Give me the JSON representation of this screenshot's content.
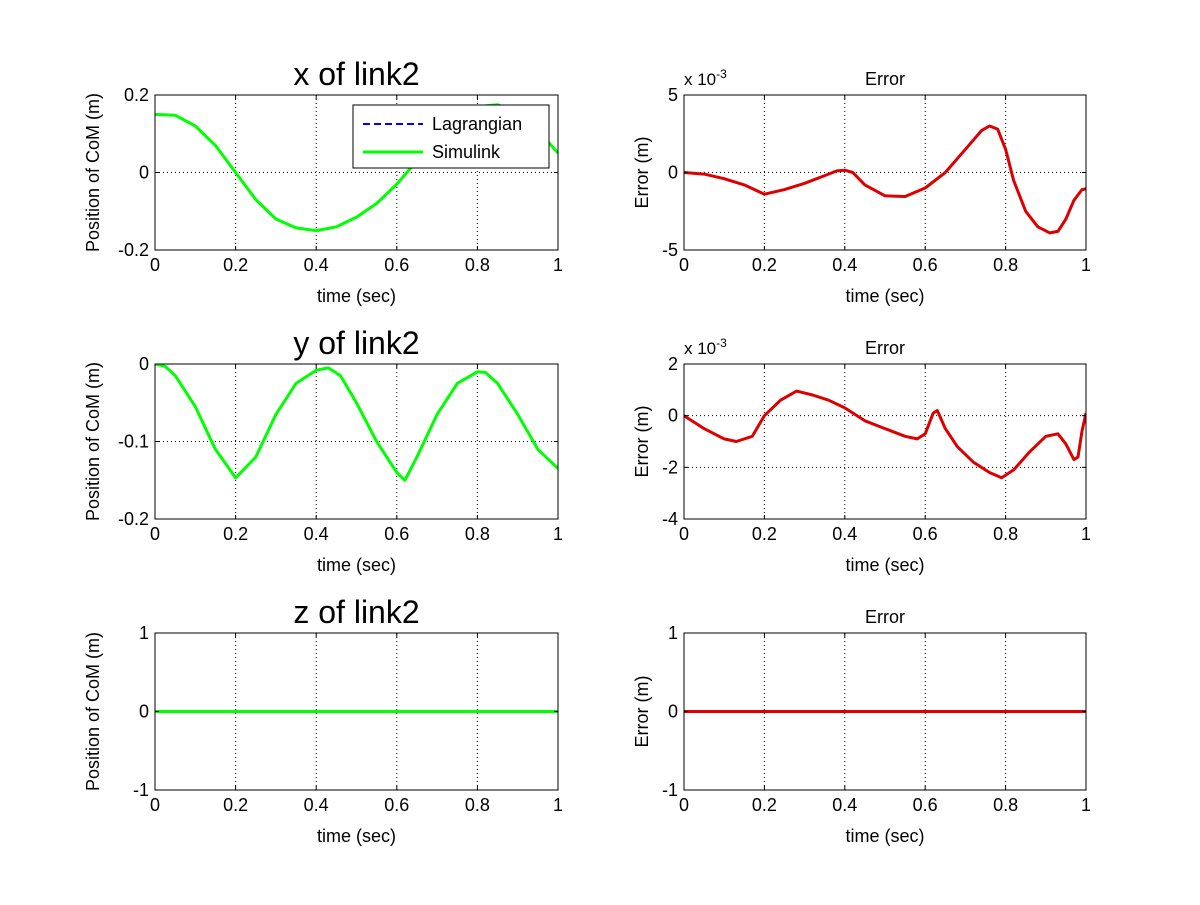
{
  "figure": {
    "background": "#ffffff",
    "line_colors": {
      "lagrangian": "#0000ff",
      "simulink": "#00ff00",
      "error": "#dd0000"
    }
  },
  "chart_data": [
    {
      "type": "line",
      "title": "x of link2",
      "xlabel": "time (sec)",
      "ylabel": "Position of CoM (m)",
      "xlim": [
        0,
        1
      ],
      "ylim": [
        -0.2,
        0.2
      ],
      "xticks": [
        0,
        0.2,
        0.4,
        0.6,
        0.8,
        1
      ],
      "yticks": [
        -0.2,
        0,
        0.2
      ],
      "xtick_labels": [
        "0",
        "0.2",
        "0.4",
        "0.6",
        "0.8",
        "1"
      ],
      "ytick_labels": [
        "-0.2",
        "0",
        "0.2"
      ],
      "grid": true,
      "legend_position": "top-right",
      "series": [
        {
          "name": "Lagrangian",
          "color": "#0000ff",
          "dash": "dashed",
          "x": [
            0,
            0.05,
            0.1,
            0.15,
            0.2,
            0.25,
            0.3,
            0.35,
            0.4,
            0.45,
            0.5,
            0.55,
            0.6,
            0.65,
            0.7,
            0.75,
            0.8,
            0.85,
            0.9,
            0.95,
            1.0
          ],
          "y": [
            0.15,
            0.148,
            0.12,
            0.07,
            0.0,
            -0.07,
            -0.12,
            -0.143,
            -0.15,
            -0.14,
            -0.115,
            -0.08,
            -0.03,
            0.03,
            0.09,
            0.14,
            0.17,
            0.175,
            0.155,
            0.11,
            0.05
          ]
        },
        {
          "name": "Simulink",
          "color": "#00ff00",
          "dash": "solid",
          "x": [
            0,
            0.05,
            0.1,
            0.15,
            0.2,
            0.25,
            0.3,
            0.35,
            0.4,
            0.45,
            0.5,
            0.55,
            0.6,
            0.65,
            0.7,
            0.75,
            0.8,
            0.85,
            0.9,
            0.95,
            1.0
          ],
          "y": [
            0.15,
            0.148,
            0.12,
            0.07,
            0.0,
            -0.07,
            -0.12,
            -0.143,
            -0.15,
            -0.14,
            -0.115,
            -0.08,
            -0.03,
            0.03,
            0.09,
            0.14,
            0.17,
            0.175,
            0.155,
            0.11,
            0.05
          ]
        }
      ]
    },
    {
      "type": "line",
      "title": "Error",
      "xlabel": "time (sec)",
      "ylabel": "Error (m)",
      "scale_label": "x 10",
      "scale_exponent": "-3",
      "xlim": [
        0,
        1
      ],
      "ylim": [
        -5,
        5
      ],
      "xticks": [
        0,
        0.2,
        0.4,
        0.6,
        0.8,
        1
      ],
      "yticks": [
        -5,
        0,
        5
      ],
      "xtick_labels": [
        "0",
        "0.2",
        "0.4",
        "0.6",
        "0.8",
        "1"
      ],
      "ytick_labels": [
        "-5",
        "0",
        "5"
      ],
      "grid": true,
      "series": [
        {
          "color": "#dd0000",
          "dash": "solid",
          "x": [
            0,
            0.05,
            0.1,
            0.15,
            0.2,
            0.25,
            0.3,
            0.35,
            0.38,
            0.4,
            0.42,
            0.45,
            0.5,
            0.55,
            0.6,
            0.65,
            0.7,
            0.74,
            0.76,
            0.78,
            0.8,
            0.82,
            0.85,
            0.88,
            0.91,
            0.93,
            0.95,
            0.97,
            0.99,
            1.0
          ],
          "y": [
            0.0,
            -0.1,
            -0.4,
            -0.8,
            -1.4,
            -1.1,
            -0.7,
            -0.2,
            0.1,
            0.15,
            0.0,
            -0.8,
            -1.5,
            -1.55,
            -1.0,
            0.0,
            1.5,
            2.7,
            3.0,
            2.8,
            1.5,
            -0.5,
            -2.5,
            -3.5,
            -3.9,
            -3.8,
            -3.0,
            -1.8,
            -1.1,
            -1.05
          ]
        }
      ]
    },
    {
      "type": "line",
      "title": "y of link2",
      "xlabel": "time (sec)",
      "ylabel": "Position of CoM (m)",
      "xlim": [
        0,
        1
      ],
      "ylim": [
        -0.2,
        0
      ],
      "xticks": [
        0,
        0.2,
        0.4,
        0.6,
        0.8,
        1
      ],
      "yticks": [
        -0.2,
        -0.1,
        0
      ],
      "xtick_labels": [
        "0",
        "0.2",
        "0.4",
        "0.6",
        "0.8",
        "1"
      ],
      "ytick_labels": [
        "-0.2",
        "-0.1",
        "0"
      ],
      "grid": true,
      "series": [
        {
          "name": "Lagrangian",
          "color": "#0000ff",
          "dash": "dashed",
          "x": [
            0,
            0.025,
            0.05,
            0.1,
            0.15,
            0.2,
            0.25,
            0.3,
            0.35,
            0.4,
            0.43,
            0.46,
            0.5,
            0.55,
            0.6,
            0.62,
            0.65,
            0.7,
            0.75,
            0.8,
            0.82,
            0.85,
            0.9,
            0.95,
            1.0
          ],
          "y": [
            0.0,
            -0.003,
            -0.015,
            -0.055,
            -0.11,
            -0.147,
            -0.12,
            -0.065,
            -0.025,
            -0.008,
            -0.005,
            -0.015,
            -0.05,
            -0.1,
            -0.14,
            -0.15,
            -0.12,
            -0.065,
            -0.025,
            -0.01,
            -0.011,
            -0.025,
            -0.065,
            -0.11,
            -0.135
          ]
        },
        {
          "name": "Simulink",
          "color": "#00ff00",
          "dash": "solid",
          "x": [
            0,
            0.025,
            0.05,
            0.1,
            0.15,
            0.2,
            0.25,
            0.3,
            0.35,
            0.4,
            0.43,
            0.46,
            0.5,
            0.55,
            0.6,
            0.62,
            0.65,
            0.7,
            0.75,
            0.8,
            0.82,
            0.85,
            0.9,
            0.95,
            1.0
          ],
          "y": [
            0.0,
            -0.003,
            -0.015,
            -0.055,
            -0.11,
            -0.147,
            -0.12,
            -0.065,
            -0.025,
            -0.008,
            -0.005,
            -0.015,
            -0.05,
            -0.1,
            -0.14,
            -0.15,
            -0.12,
            -0.065,
            -0.025,
            -0.01,
            -0.011,
            -0.025,
            -0.065,
            -0.11,
            -0.135
          ]
        }
      ]
    },
    {
      "type": "line",
      "title": "Error",
      "xlabel": "time (sec)",
      "ylabel": "Error (m)",
      "scale_label": "x 10",
      "scale_exponent": "-3",
      "xlim": [
        0,
        1
      ],
      "ylim": [
        -4,
        2
      ],
      "xticks": [
        0,
        0.2,
        0.4,
        0.6,
        0.8,
        1
      ],
      "yticks": [
        -4,
        -2,
        0,
        2
      ],
      "xtick_labels": [
        "0",
        "0.2",
        "0.4",
        "0.6",
        "0.8",
        "1"
      ],
      "ytick_labels": [
        "-4",
        "-2",
        "0",
        "2"
      ],
      "grid": true,
      "series": [
        {
          "color": "#dd0000",
          "dash": "solid",
          "x": [
            0,
            0.05,
            0.1,
            0.13,
            0.17,
            0.2,
            0.24,
            0.28,
            0.32,
            0.36,
            0.4,
            0.45,
            0.5,
            0.55,
            0.58,
            0.6,
            0.62,
            0.63,
            0.65,
            0.68,
            0.72,
            0.76,
            0.79,
            0.82,
            0.86,
            0.9,
            0.93,
            0.95,
            0.97,
            0.98,
            0.99,
            1.0
          ],
          "y": [
            0.0,
            -0.5,
            -0.9,
            -1.0,
            -0.8,
            0.0,
            0.6,
            0.95,
            0.8,
            0.6,
            0.3,
            -0.2,
            -0.5,
            -0.8,
            -0.9,
            -0.7,
            0.1,
            0.2,
            -0.5,
            -1.2,
            -1.8,
            -2.2,
            -2.4,
            -2.1,
            -1.4,
            -0.8,
            -0.7,
            -1.1,
            -1.7,
            -1.6,
            -0.6,
            0.1
          ]
        }
      ]
    },
    {
      "type": "line",
      "title": "z of link2",
      "xlabel": "time (sec)",
      "ylabel": "Position of CoM (m)",
      "xlim": [
        0,
        1
      ],
      "ylim": [
        -1,
        1
      ],
      "xticks": [
        0,
        0.2,
        0.4,
        0.6,
        0.8,
        1
      ],
      "yticks": [
        -1,
        0,
        1
      ],
      "xtick_labels": [
        "0",
        "0.2",
        "0.4",
        "0.6",
        "0.8",
        "1"
      ],
      "ytick_labels": [
        "-1",
        "0",
        "1"
      ],
      "grid": true,
      "series": [
        {
          "name": "Lagrangian",
          "color": "#0000ff",
          "dash": "dashed",
          "x": [
            0,
            1
          ],
          "y": [
            0,
            0
          ]
        },
        {
          "name": "Simulink",
          "color": "#00ff00",
          "dash": "solid",
          "x": [
            0,
            1
          ],
          "y": [
            0,
            0
          ]
        }
      ]
    },
    {
      "type": "line",
      "title": "Error",
      "xlabel": "time (sec)",
      "ylabel": "Error (m)",
      "xlim": [
        0,
        1
      ],
      "ylim": [
        -1,
        1
      ],
      "xticks": [
        0,
        0.2,
        0.4,
        0.6,
        0.8,
        1
      ],
      "yticks": [
        -1,
        0,
        1
      ],
      "xtick_labels": [
        "0",
        "0.2",
        "0.4",
        "0.6",
        "0.8",
        "1"
      ],
      "ytick_labels": [
        "-1",
        "0",
        "1"
      ],
      "grid": true,
      "series": [
        {
          "color": "#dd0000",
          "dash": "solid",
          "x": [
            0,
            1
          ],
          "y": [
            0,
            0
          ]
        }
      ]
    }
  ]
}
